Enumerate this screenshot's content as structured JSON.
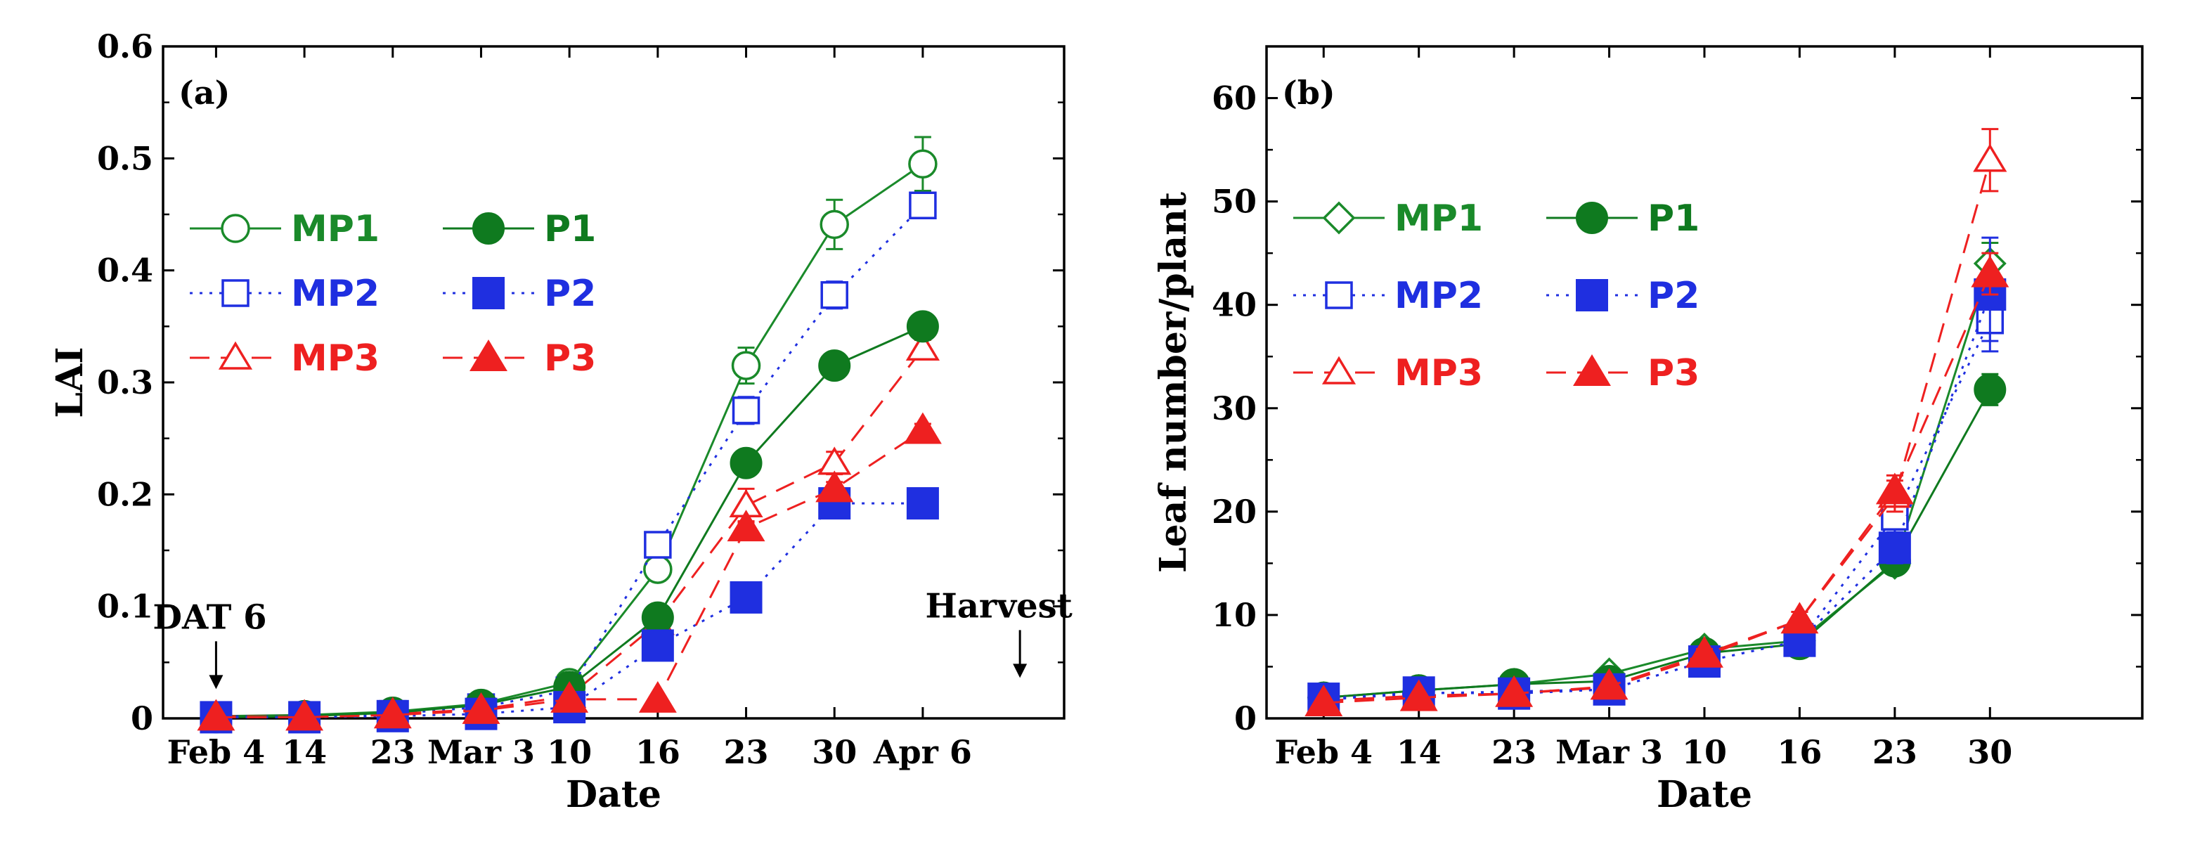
{
  "chart_data": [
    {
      "type": "line",
      "panel_label": "(a)",
      "xlabel": "Date",
      "ylabel": "LAI",
      "ylim": [
        0,
        0.6
      ],
      "y_ticks": [
        "0",
        "0.1",
        "0.2",
        "0.3",
        "0.4",
        "0.5",
        "0.6"
      ],
      "categories": [
        "Feb 4",
        "14",
        "23",
        "Mar 3",
        "10",
        "16",
        "23",
        "30",
        "Apr 6"
      ],
      "x": [
        0,
        1,
        2,
        3,
        4,
        5,
        6,
        7,
        8
      ],
      "xlim": [
        -0.6,
        9.6
      ],
      "legend_columns": 2,
      "annotations": [
        {
          "text": "DAT 6",
          "x": 0,
          "y": 0.05
        },
        {
          "text": "Harvest",
          "x": 9.1,
          "y": 0.06
        }
      ],
      "series": [
        {
          "name": "MP1",
          "color": "#1a8a2a",
          "marker": "circle-open",
          "line": "solid",
          "values": [
            0.002,
            0.003,
            0.006,
            0.013,
            0.032,
            0.133,
            0.315,
            0.441,
            0.495
          ],
          "errors": [
            0,
            0,
            0,
            0,
            0.004,
            0.008,
            0.016,
            0.022,
            0.024
          ]
        },
        {
          "name": "MP2",
          "color": "#1f2fe0",
          "marker": "square-open",
          "line": "dotted",
          "values": [
            0.002,
            0.002,
            0.004,
            0.01,
            0.025,
            0.155,
            0.275,
            0.378,
            0.458
          ],
          "errors": [
            0,
            0,
            0,
            0,
            0,
            0.006,
            0.012,
            0.012,
            0.01
          ]
        },
        {
          "name": "MP3",
          "color": "#ee2020",
          "marker": "triangle-open",
          "line": "dashed",
          "values": [
            0.002,
            0.002,
            0.004,
            0.008,
            0.02,
            0.085,
            0.19,
            0.228,
            0.33
          ],
          "errors": [
            0,
            0,
            0,
            0,
            0,
            0.004,
            0.015,
            0.01,
            0.008
          ]
        },
        {
          "name": "P1",
          "color": "#0f7a1f",
          "marker": "circle-filled",
          "line": "solid",
          "values": [
            0.001,
            0.002,
            0.005,
            0.012,
            0.028,
            0.09,
            0.228,
            0.315,
            0.35
          ],
          "errors": [
            0,
            0,
            0,
            0,
            0,
            0.004,
            0.008,
            0.01,
            0.01
          ]
        },
        {
          "name": "P2",
          "color": "#1f2fe0",
          "marker": "square-filled",
          "line": "dotted",
          "values": [
            0.001,
            0.001,
            0.002,
            0.004,
            0.01,
            0.065,
            0.108,
            0.192,
            0.192
          ],
          "errors": [
            0,
            0,
            0,
            0,
            0,
            0.004,
            0.004,
            0.004,
            0.004
          ]
        },
        {
          "name": "P3",
          "color": "#ee2020",
          "marker": "triangle-filled",
          "line": "dashed",
          "values": [
            0.001,
            0.001,
            0.003,
            0.007,
            0.017,
            0.017,
            0.17,
            0.205,
            0.257
          ],
          "errors": [
            0,
            0,
            0,
            0,
            0,
            0,
            0.006,
            0.006,
            0.006
          ]
        }
      ]
    },
    {
      "type": "line",
      "panel_label": "(b)",
      "xlabel": "Date",
      "ylabel": "Leaf number/plant",
      "ylim": [
        0,
        65
      ],
      "y_ticks": [
        "0",
        "10",
        "20",
        "30",
        "40",
        "50",
        "60"
      ],
      "categories": [
        "Feb 4",
        "14",
        "23",
        "Mar 3",
        "10",
        "16",
        "23",
        "30"
      ],
      "x": [
        0,
        1,
        2,
        3,
        4,
        5,
        6,
        7
      ],
      "xlim": [
        -0.6,
        8.6
      ],
      "legend_columns": 2,
      "annotations": [],
      "series": [
        {
          "name": "MP1",
          "color": "#1a8a2a",
          "marker": "diamond-open",
          "line": "solid",
          "values": [
            2.0,
            2.7,
            3.3,
            4.3,
            6.7,
            7.5,
            15.0,
            44.0
          ],
          "errors": [
            0,
            0,
            0,
            0.3,
            0.5,
            0.5,
            1.0,
            2.0
          ]
        },
        {
          "name": "MP2",
          "color": "#1f2fe0",
          "marker": "square-open",
          "line": "dotted",
          "values": [
            1.8,
            2.4,
            2.6,
            2.8,
            5.5,
            7.5,
            19.5,
            38.5
          ],
          "errors": [
            0,
            0,
            0,
            0,
            0.5,
            0.5,
            2.0,
            2.0
          ]
        },
        {
          "name": "MP3",
          "color": "#ee2020",
          "marker": "triangle-open",
          "line": "dashed",
          "values": [
            1.7,
            2.2,
            2.4,
            3.0,
            6.0,
            9.5,
            21.5,
            54.0
          ],
          "errors": [
            0,
            0,
            0,
            0,
            0.4,
            0.8,
            1.5,
            3.0
          ]
        },
        {
          "name": "P1",
          "color": "#0f7a1f",
          "marker": "circle-filled",
          "line": "solid",
          "values": [
            2.0,
            2.7,
            3.3,
            3.6,
            6.3,
            7.2,
            15.2,
            31.8
          ],
          "errors": [
            0,
            0,
            0,
            0,
            0.5,
            0.5,
            0.8,
            1.5
          ]
        },
        {
          "name": "P2",
          "color": "#1f2fe0",
          "marker": "square-filled",
          "line": "dotted",
          "values": [
            1.9,
            2.5,
            2.4,
            2.8,
            5.5,
            7.5,
            16.5,
            41.0
          ],
          "errors": [
            0,
            0,
            0,
            0,
            0.5,
            0.5,
            1.5,
            5.5
          ]
        },
        {
          "name": "P3",
          "color": "#ee2020",
          "marker": "triangle-filled",
          "line": "dashed",
          "values": [
            1.5,
            2.0,
            2.4,
            3.1,
            6.2,
            9.5,
            22.0,
            43.0
          ],
          "errors": [
            0,
            0,
            0,
            0,
            0.5,
            0.8,
            1.5,
            2.0
          ]
        }
      ]
    }
  ]
}
